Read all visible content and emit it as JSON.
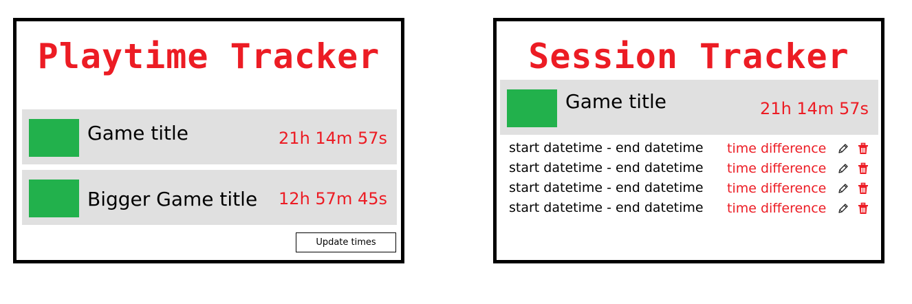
{
  "playtime": {
    "title": "Playtime Tracker",
    "games": [
      {
        "title": "Game title",
        "time": "21h 14m 57s"
      },
      {
        "title": "Bigger Game title",
        "time": "12h 57m 45s"
      }
    ],
    "update_label": "Update times"
  },
  "session": {
    "title": "Session Tracker",
    "game": {
      "title": "Game title",
      "time": "21h 14m 57s"
    },
    "sessions": [
      {
        "range": "start datetime - end datetime",
        "diff": "time difference"
      },
      {
        "range": "start datetime - end datetime",
        "diff": "time difference"
      },
      {
        "range": "start datetime - end datetime",
        "diff": "time difference"
      },
      {
        "range": "start datetime - end datetime",
        "diff": "time difference"
      }
    ]
  },
  "colors": {
    "accent": "#ec1c24",
    "thumbnail": "#22b14c",
    "row_bg": "#e0e0e0"
  },
  "icons": {
    "edit": "pencil-icon",
    "delete": "trash-icon"
  }
}
